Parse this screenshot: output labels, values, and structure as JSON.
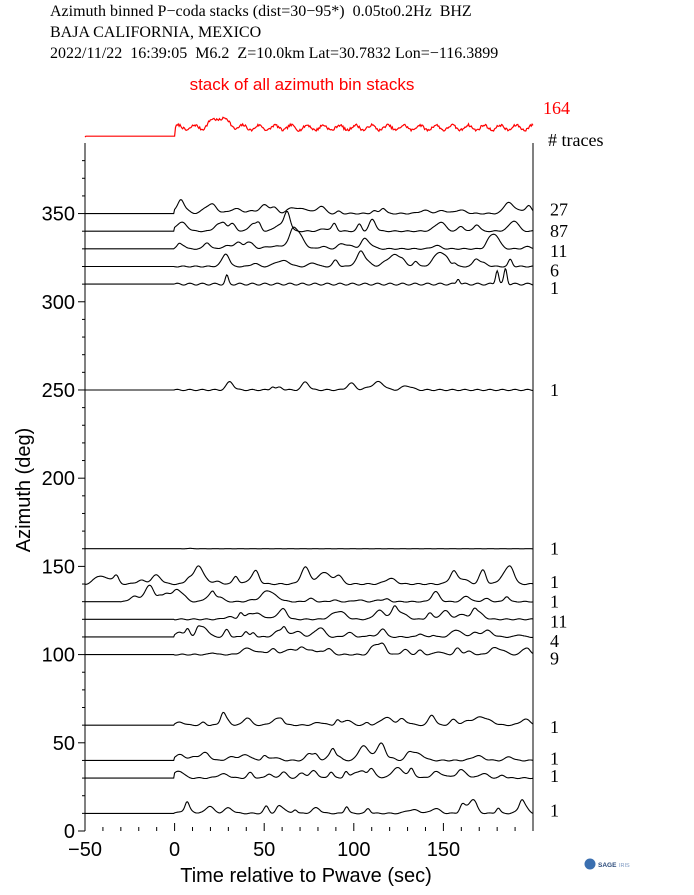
{
  "header": {
    "line1": "Azimuth binned P−coda stacks (dist=30−95*)  0.05to0.2Hz  BHZ",
    "line2": "BAJA CALIFORNIA, MEXICO",
    "line3": "2022/11/22  16:39:05  M6.2  Z=10.0km Lat=30.7832 Lon=−116.3899"
  },
  "logo": {
    "text": "SAGE",
    "subtext": "IRIS"
  },
  "colors": {
    "stack": "#ff0000",
    "trace": "#000000"
  },
  "chart_data": {
    "type": "line",
    "title": "stack of all azimuth bin stacks",
    "xlabel": "Time relative to Pwave (sec)",
    "ylabel": "Azimuth (deg)",
    "xlim": [
      -50,
      200
    ],
    "ylim": [
      0,
      390
    ],
    "xticks": [
      -50,
      0,
      50,
      100,
      150
    ],
    "xtick_labels": [
      "−50",
      "0",
      "50",
      "100",
      "150"
    ],
    "yticks": [
      0,
      50,
      100,
      150,
      200,
      250,
      300,
      350
    ],
    "stack": {
      "count": "164",
      "count_label": "# traces"
    },
    "series": [
      {
        "azimuth": 350,
        "count": "27"
      },
      {
        "azimuth": 340,
        "count": "87"
      },
      {
        "azimuth": 330,
        "count": "11"
      },
      {
        "azimuth": 320,
        "count": "6"
      },
      {
        "azimuth": 310,
        "count": "1"
      },
      {
        "azimuth": 250,
        "count": "1"
      },
      {
        "azimuth": 160,
        "count": "1"
      },
      {
        "azimuth": 140,
        "count": "1"
      },
      {
        "azimuth": 130,
        "count": "1"
      },
      {
        "azimuth": 120,
        "count": "11"
      },
      {
        "azimuth": 110,
        "count": "4"
      },
      {
        "azimuth": 100,
        "count": "9"
      },
      {
        "azimuth": 60,
        "count": "1"
      },
      {
        "azimuth": 40,
        "count": "1"
      },
      {
        "azimuth": 30,
        "count": "1"
      },
      {
        "azimuth": 10,
        "count": "1"
      }
    ]
  }
}
